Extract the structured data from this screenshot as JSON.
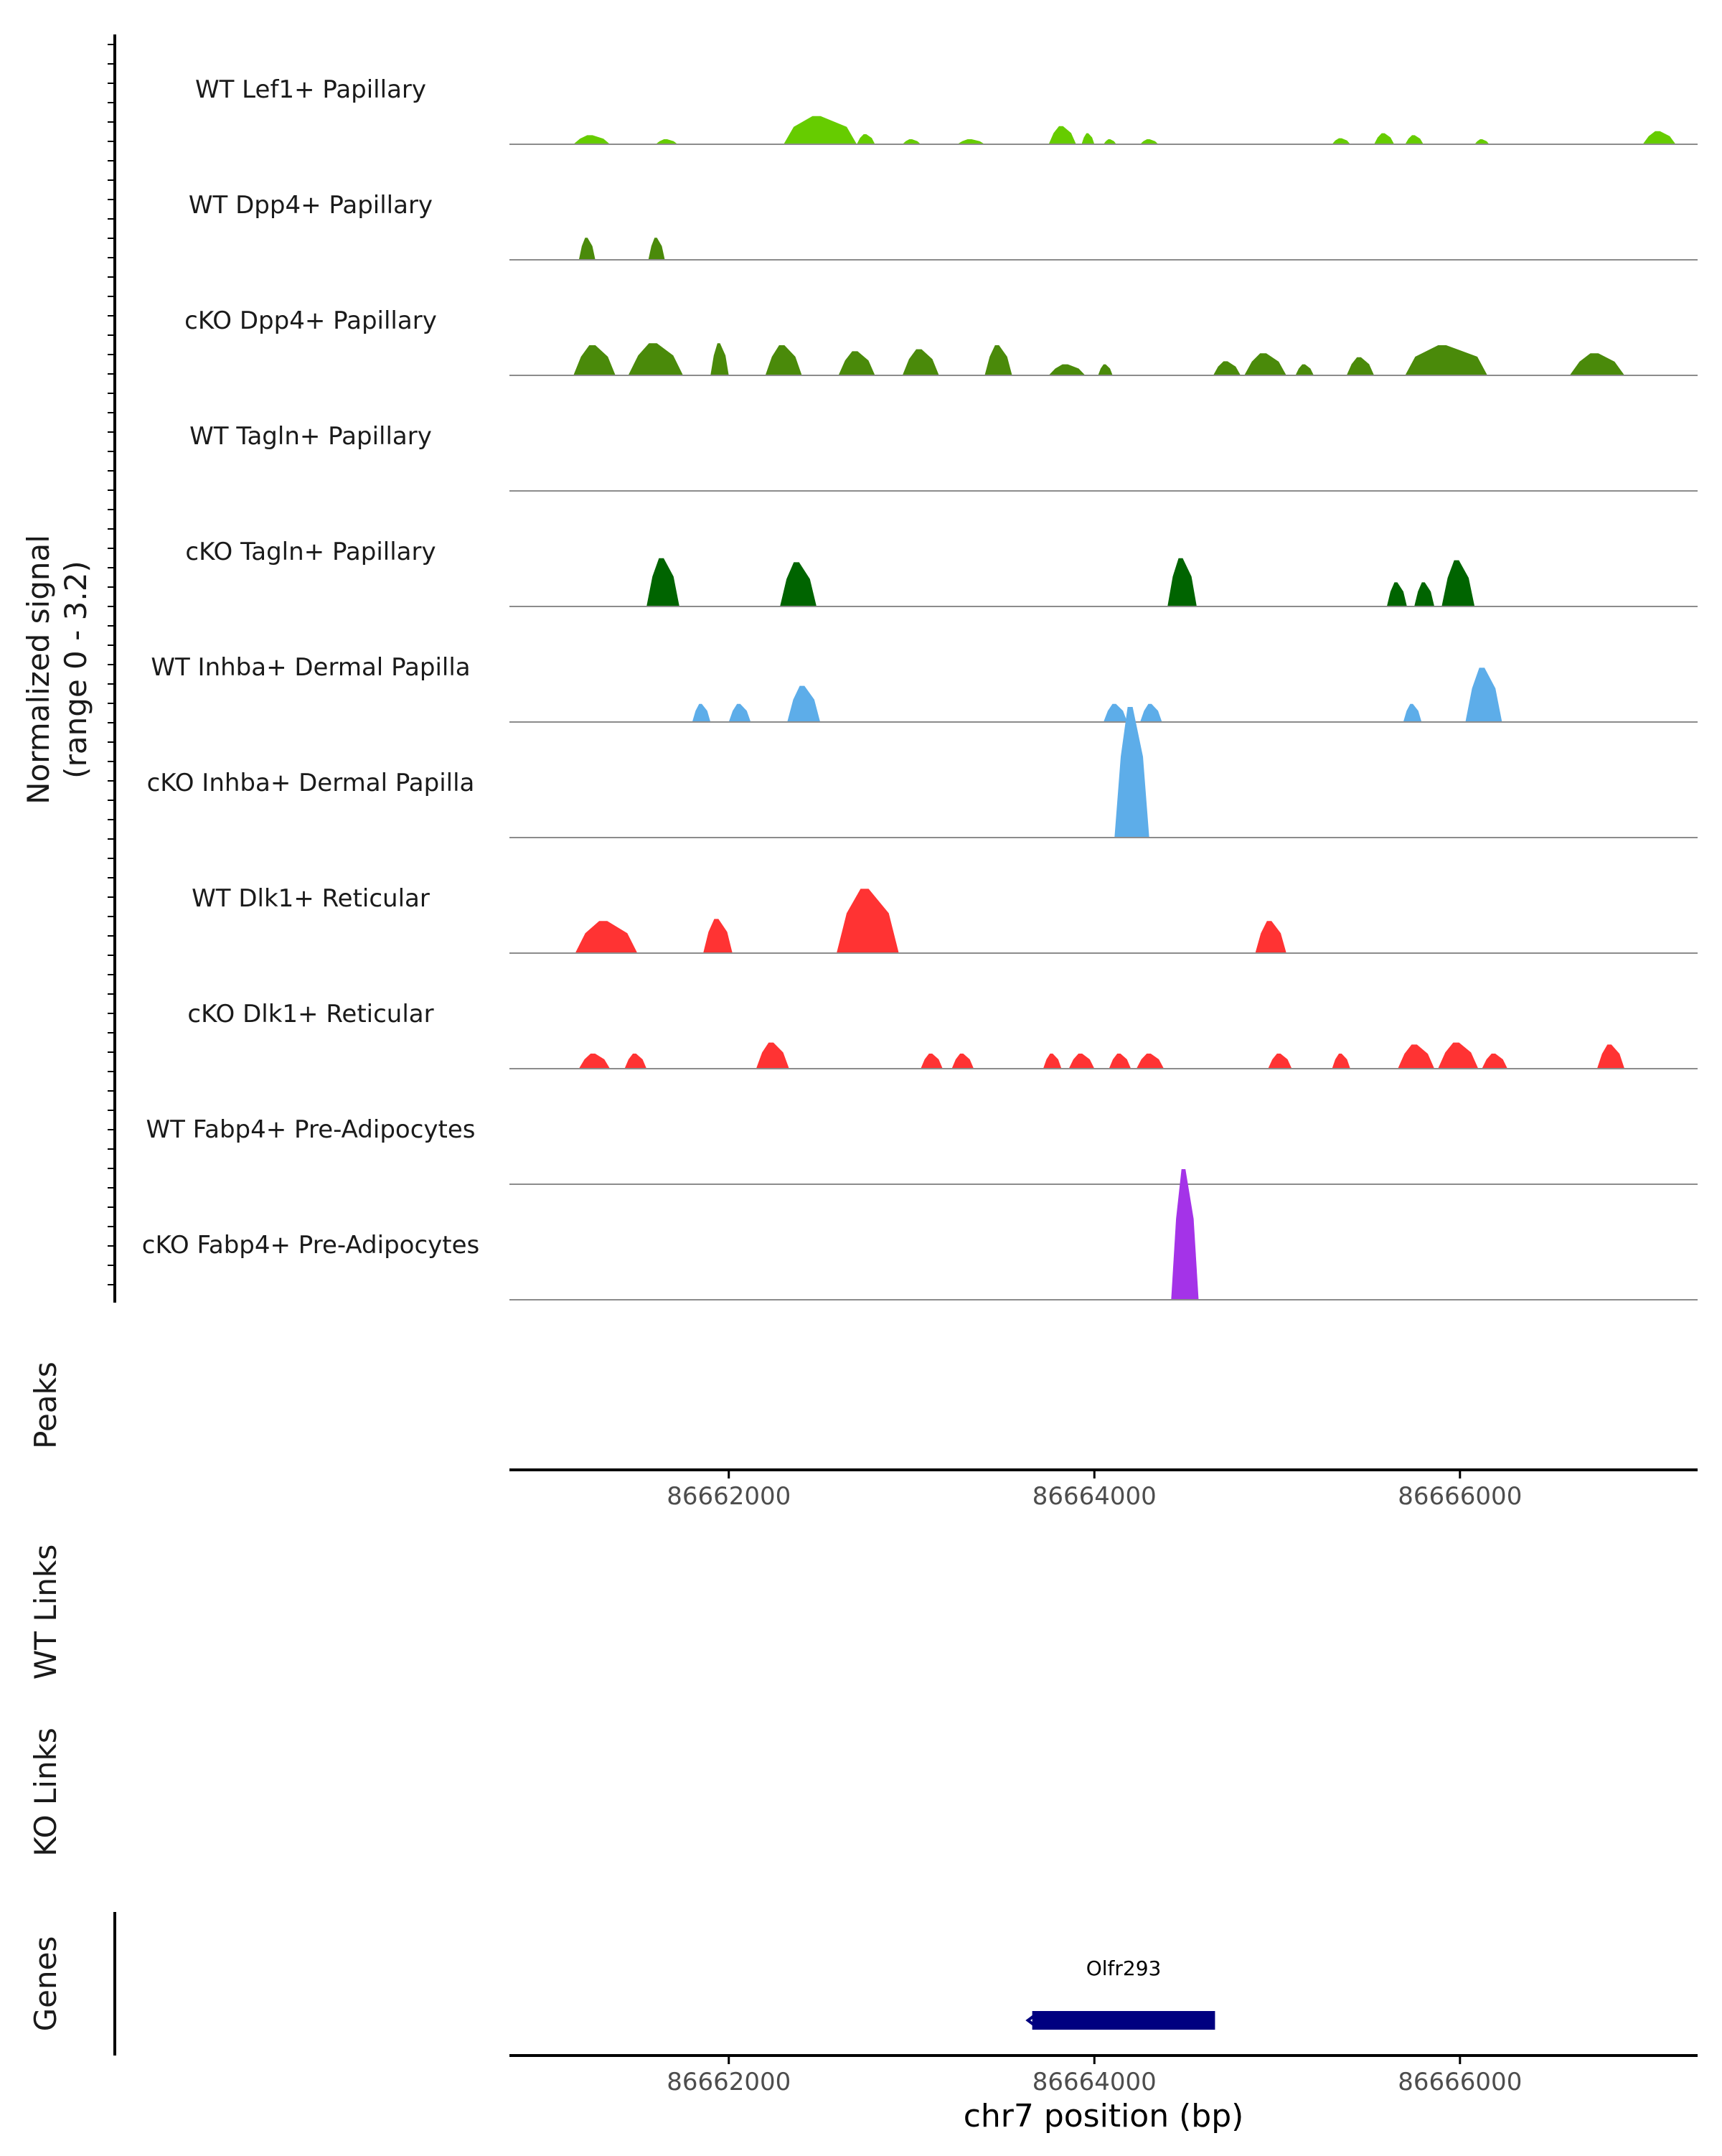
{
  "chart_data": {
    "type": "coverage-track",
    "chromosome": "chr7",
    "x_range": [
      86660800,
      86667300
    ],
    "xlabel": "chr7 position (bp)",
    "x_ticks": [
      86662000,
      86664000,
      86666000
    ],
    "x_tick_labels": [
      "86662000",
      "86664000",
      "86666000"
    ],
    "ylabel_line1": "Normalized signal",
    "ylabel_line2": "(range 0 - 3.2)",
    "ylim": [
      0,
      3.2
    ],
    "panel_labels": {
      "peaks": "Peaks",
      "wt_links": "WT Links",
      "ko_links": "KO Links",
      "genes": "Genes"
    },
    "tracks": [
      {
        "name": "WT Lef1+ Papillary",
        "color": "#66CC00",
        "peaks": [
          [
            86661150,
            86661350,
            0.45
          ],
          [
            86661600,
            86661720,
            0.25
          ],
          [
            86662300,
            86662700,
            1.4
          ],
          [
            86662700,
            86662800,
            0.5
          ],
          [
            86662950,
            86663050,
            0.25
          ],
          [
            86663250,
            86663400,
            0.25
          ],
          [
            86663750,
            86663900,
            0.9
          ],
          [
            86663930,
            86664000,
            0.55
          ],
          [
            86664050,
            86664120,
            0.25
          ],
          [
            86664250,
            86664350,
            0.25
          ],
          [
            86665300,
            86665400,
            0.3
          ],
          [
            86665530,
            86665640,
            0.55
          ],
          [
            86665700,
            86665800,
            0.45
          ],
          [
            86666080,
            86666160,
            0.25
          ],
          [
            86667000,
            86667180,
            0.65
          ]
        ]
      },
      {
        "name": "WT Dpp4+ Papillary",
        "color": "#4A8A0A",
        "peaks": [
          [
            86661180,
            86661270,
            1.1
          ],
          [
            86661560,
            86661650,
            1.1
          ]
        ]
      },
      {
        "name": "cKO Dpp4+ Papillary",
        "color": "#4A8A0A",
        "peaks": [
          [
            86661150,
            86661380,
            1.5
          ],
          [
            86661450,
            86661750,
            1.6
          ],
          [
            86661900,
            86662000,
            1.6
          ],
          [
            86662200,
            86662400,
            1.5
          ],
          [
            86662600,
            86662800,
            1.2
          ],
          [
            86662950,
            86663150,
            1.3
          ],
          [
            86663400,
            86663550,
            1.5
          ],
          [
            86663750,
            86663950,
            0.55
          ],
          [
            86664020,
            86664100,
            0.55
          ],
          [
            86664650,
            86664800,
            0.7
          ],
          [
            86664820,
            86665050,
            1.1
          ],
          [
            86665100,
            86665200,
            0.55
          ],
          [
            86665380,
            86665530,
            0.9
          ],
          [
            86665700,
            86666150,
            1.5
          ],
          [
            86666600,
            86666900,
            1.1
          ]
        ]
      },
      {
        "name": "WT Tagln+ Papillary",
        "color": "#1F6E10",
        "peaks": []
      },
      {
        "name": "cKO Tagln+ Papillary",
        "color": "#006400",
        "peaks": [
          [
            86661550,
            86661730,
            2.4
          ],
          [
            86662280,
            86662480,
            2.2
          ],
          [
            86664400,
            86664560,
            2.4
          ],
          [
            86665600,
            86665710,
            1.2
          ],
          [
            86665750,
            86665860,
            1.2
          ],
          [
            86665900,
            86666080,
            2.3
          ]
        ]
      },
      {
        "name": "WT Inhba+ Dermal Papilla",
        "color": "#5DADE9",
        "peaks": [
          [
            86661800,
            86661900,
            0.9
          ],
          [
            86662000,
            86662120,
            0.9
          ],
          [
            86662320,
            86662500,
            1.8
          ],
          [
            86664050,
            86664180,
            0.9
          ],
          [
            86664250,
            86664370,
            0.9
          ],
          [
            86665690,
            86665790,
            0.9
          ],
          [
            86666030,
            86666230,
            2.7
          ]
        ]
      },
      {
        "name": "cKO Inhba+ Dermal Papilla",
        "color": "#5DADE9",
        "peaks": [
          [
            86664110,
            86664300,
            6.5
          ]
        ]
      },
      {
        "name": "WT Dlk1+ Reticular",
        "color": "#FF3333",
        "peaks": [
          [
            86661160,
            86661500,
            1.6
          ],
          [
            86661860,
            86662020,
            1.7
          ],
          [
            86662590,
            86662930,
            3.2
          ],
          [
            86664880,
            86665050,
            1.6
          ]
        ]
      },
      {
        "name": "cKO Dlk1+ Reticular",
        "color": "#FF3333",
        "peaks": [
          [
            86661180,
            86661350,
            0.75
          ],
          [
            86661430,
            86661550,
            0.75
          ],
          [
            86662150,
            86662330,
            1.3
          ],
          [
            86663050,
            86663170,
            0.75
          ],
          [
            86663220,
            86663340,
            0.75
          ],
          [
            86663720,
            86663820,
            0.75
          ],
          [
            86663860,
            86664000,
            0.75
          ],
          [
            86664080,
            86664200,
            0.75
          ],
          [
            86664230,
            86664380,
            0.75
          ],
          [
            86664950,
            86665080,
            0.75
          ],
          [
            86665300,
            86665400,
            0.75
          ],
          [
            86665660,
            86665860,
            1.2
          ],
          [
            86665880,
            86666100,
            1.3
          ],
          [
            86666120,
            86666260,
            0.75
          ],
          [
            86666750,
            86666900,
            1.2
          ]
        ]
      },
      {
        "name": "WT Fabp4+ Pre-Adipocytes",
        "color": "#A433E8",
        "peaks": []
      },
      {
        "name": "cKO Fabp4+ Pre-Adipocytes",
        "color": "#A433E8",
        "peaks": [
          [
            86664420,
            86664570,
            6.5
          ]
        ]
      }
    ],
    "genes": [
      {
        "name": "Olfr293",
        "start": 86663660,
        "end": 86664660,
        "strand": "-",
        "color": "#000080"
      }
    ]
  }
}
